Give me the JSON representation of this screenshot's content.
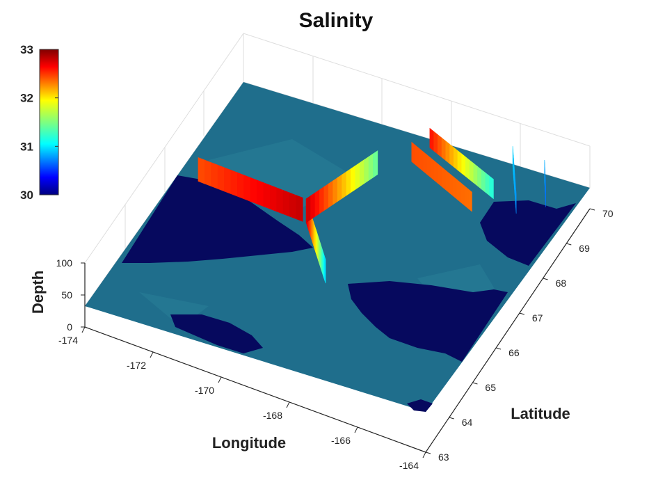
{
  "chart_data": {
    "type": "scatter",
    "title": "Salinity",
    "xlabel": "Longitude",
    "ylabel": "Latitude",
    "zlabel": "Depth",
    "xlim": [
      -174,
      -164
    ],
    "ylim": [
      63,
      70
    ],
    "zlim": [
      0,
      100
    ],
    "x_ticks": [
      "-174",
      "-172",
      "-170",
      "-168",
      "-166",
      "-164"
    ],
    "y_ticks": [
      "63",
      "64",
      "65",
      "66",
      "67",
      "68",
      "69",
      "70"
    ],
    "z_ticks": [
      "0",
      "50",
      "100"
    ],
    "colorbar": {
      "min": 30,
      "max": 33,
      "ticks": [
        "30",
        "31",
        "32",
        "33"
      ],
      "colormap": "jet"
    },
    "colors": {
      "ocean": "#1f6e8c",
      "land": "#06095e"
    },
    "transects": [
      {
        "lon": [
          -173.4,
          -170.2
        ],
        "lat": [
          67.1,
          66.9
        ],
        "depth_max": 55,
        "salinity": [
          32.4,
          32.8
        ]
      },
      {
        "lon": [
          -170.1,
          -168.6
        ],
        "lat": [
          66.9,
          65.5
        ],
        "depth_max": 55,
        "salinity": [
          32.8,
          31.0
        ]
      },
      {
        "lon": [
          -170.1,
          -169.2
        ],
        "lat": [
          66.9,
          68.7
        ],
        "depth_max": 55,
        "salinity": [
          32.8,
          31.4
        ]
      },
      {
        "lon": [
          -168.6,
          -166.3
        ],
        "lat": [
          69.3,
          68.5
        ],
        "depth_max": 45,
        "salinity": [
          32.4,
          32.3
        ]
      },
      {
        "lon": [
          -168.4,
          -166.0
        ],
        "lat": [
          69.8,
          69.0
        ],
        "depth_max": 45,
        "salinity": [
          32.6,
          31.2
        ]
      },
      {
        "lon": [
          -166.1,
          -165.2
        ],
        "lat": [
          70.0,
          68.8
        ],
        "depth_max": 45,
        "salinity": [
          31.0,
          30.8
        ]
      },
      {
        "lon": [
          -165.1,
          -164.6
        ],
        "lat": [
          69.9,
          69.2
        ],
        "depth_max": 45,
        "salinity": [
          30.9,
          30.7
        ]
      }
    ]
  }
}
